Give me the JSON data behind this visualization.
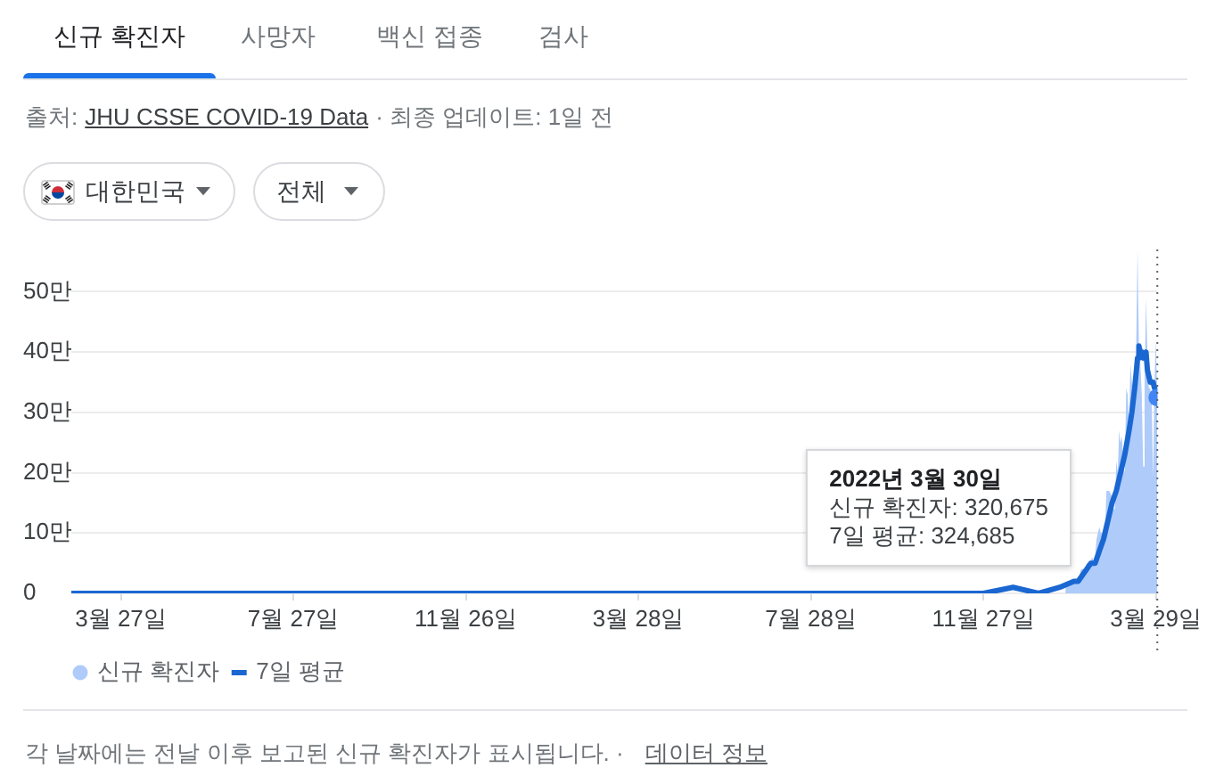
{
  "chart_data": {
    "type": "area",
    "annotations": [
      "신규 확진자",
      "사망자",
      "백신 접종",
      "검사",
      "출처:",
      "JHU CSSE COVID-19 Data",
      "· 최종 업데이트: 1일 전",
      "대한민국",
      "전체",
      "2022년 3월 30일\n신규 확진자: 320,675\n7일 평균: 324,685",
      "각 날짜에는 전날 이후 보고된 신규 확진자가 표시됩니다. ·",
      "데이터 정보"
    ],
    "xlim": [
      "2020-02-21",
      "2022-03-30"
    ],
    "xticks": [
      {
        "value": "2020-03-27",
        "label": "3월 27일"
      },
      {
        "value": "2020-07-27",
        "label": "7월 27일"
      },
      {
        "value": "2020-11-26",
        "label": "11월 26일"
      },
      {
        "value": "2021-03-28",
        "label": "3월 28일"
      },
      {
        "value": "2021-07-28",
        "label": "7월 28일"
      },
      {
        "value": "2021-11-27",
        "label": "11월 27일"
      },
      {
        "value": "2022-03-29",
        "label": "3월 29일"
      }
    ],
    "ylim": [
      0,
      57
    ],
    "yticks": [
      0,
      {
        "value": 10,
        "label": "10만"
      },
      {
        "value": 20,
        "label": "20만"
      },
      {
        "value": 30,
        "label": "30만"
      },
      {
        "value": 40,
        "label": "40만"
      },
      {
        "value": 50,
        "label": "50만"
      }
    ],
    "grid": "y",
    "legend": "bottom left",
    "ref_lines": [
      {
        "axis": "x",
        "value": "2022-03-30",
        "line_style": "dotted",
        "color": "#5f6368"
      }
    ],
    "series": [
      {
        "name": "신규 확진자",
        "color": "#aecbfa",
        "x": [
          "2022-01-24",
          "2022-01-25",
          "2022-01-26",
          "2022-01-27",
          "2022-01-28",
          "2022-01-29",
          "2022-01-30",
          "2022-01-31",
          "2022-02-01",
          "2022-02-02",
          "2022-02-03",
          "2022-02-04",
          "2022-02-05",
          "2022-02-06",
          "2022-02-07",
          "2022-02-08",
          "2022-02-09",
          "2022-02-10",
          "2022-02-11",
          "2022-02-12",
          "2022-02-13",
          "2022-02-14",
          "2022-02-15",
          "2022-02-16",
          "2022-02-17",
          "2022-02-18",
          "2022-02-19",
          "2022-02-20",
          "2022-02-21",
          "2022-02-22",
          "2022-02-23",
          "2022-02-24",
          "2022-02-25",
          "2022-02-26",
          "2022-02-27",
          "2022-02-28",
          "2022-03-01",
          "2022-03-02",
          "2022-03-03",
          "2022-03-04",
          "2022-03-05",
          "2022-03-06",
          "2022-03-07",
          "2022-03-08",
          "2022-03-09",
          "2022-03-10",
          "2022-03-11",
          "2022-03-12",
          "2022-03-13",
          "2022-03-14",
          "2022-03-15",
          "2022-03-16",
          "2022-03-17",
          "2022-03-18",
          "2022-03-19",
          "2022-03-20",
          "2022-03-21",
          "2022-03-22",
          "2022-03-23",
          "2022-03-24",
          "2022-03-25",
          "2022-03-26",
          "2022-03-27",
          "2022-03-28",
          "2022-03-29",
          "2022-03-30"
        ],
        "values": [
          1,
          1,
          2,
          2,
          2,
          2,
          2,
          2,
          2,
          2,
          3,
          4,
          4,
          4,
          4,
          5,
          5,
          5,
          5,
          6,
          5,
          6,
          9,
          9,
          11,
          10,
          10,
          10,
          10,
          17,
          17,
          17,
          17,
          16,
          14,
          14,
          22,
          20,
          27,
          25,
          26,
          21,
          20,
          34,
          33,
          28,
          38,
          35,
          31,
          36,
          40,
          57,
          41,
          38,
          33,
          21,
          35,
          49,
          40,
          34,
          34,
          32,
          19,
          35,
          42,
          32.0675
        ]
      },
      {
        "name": "7일 평균",
        "type": "line",
        "color": "#1a67d2",
        "marker": "none",
        "x": [
          "2020-02-21",
          "2021-11-27",
          "2021-12-18",
          "2022-01-05",
          "2022-01-20",
          "2022-01-30",
          "2022-02-02",
          "2022-02-05",
          "2022-02-08",
          "2022-02-11",
          "2022-02-14",
          "2022-02-17",
          "2022-02-20",
          "2022-02-23",
          "2022-02-26",
          "2022-03-01",
          "2022-03-04",
          "2022-03-07",
          "2022-03-10",
          "2022-03-12",
          "2022-03-14",
          "2022-03-16",
          "2022-03-17",
          "2022-03-18",
          "2022-03-19",
          "2022-03-20",
          "2022-03-21",
          "2022-03-22",
          "2022-03-23",
          "2022-03-24",
          "2022-03-25",
          "2022-03-26",
          "2022-03-27",
          "2022-03-28",
          "2022-03-29",
          "2022-03-30"
        ],
        "values": [
          0,
          0,
          1,
          0,
          1,
          2,
          2,
          3,
          4,
          5,
          5,
          7,
          9,
          12,
          15,
          17,
          20,
          23,
          27,
          30,
          34,
          39,
          41,
          40,
          40,
          39,
          39,
          40,
          37,
          36,
          35,
          35,
          35,
          34,
          34,
          32.4685
        ]
      },
      {
        "type": "scatter",
        "color": "#4285f4",
        "marker": "circle",
        "x": [
          "2022-03-30"
        ],
        "values": [
          32.4685
        ]
      }
    ]
  }
}
